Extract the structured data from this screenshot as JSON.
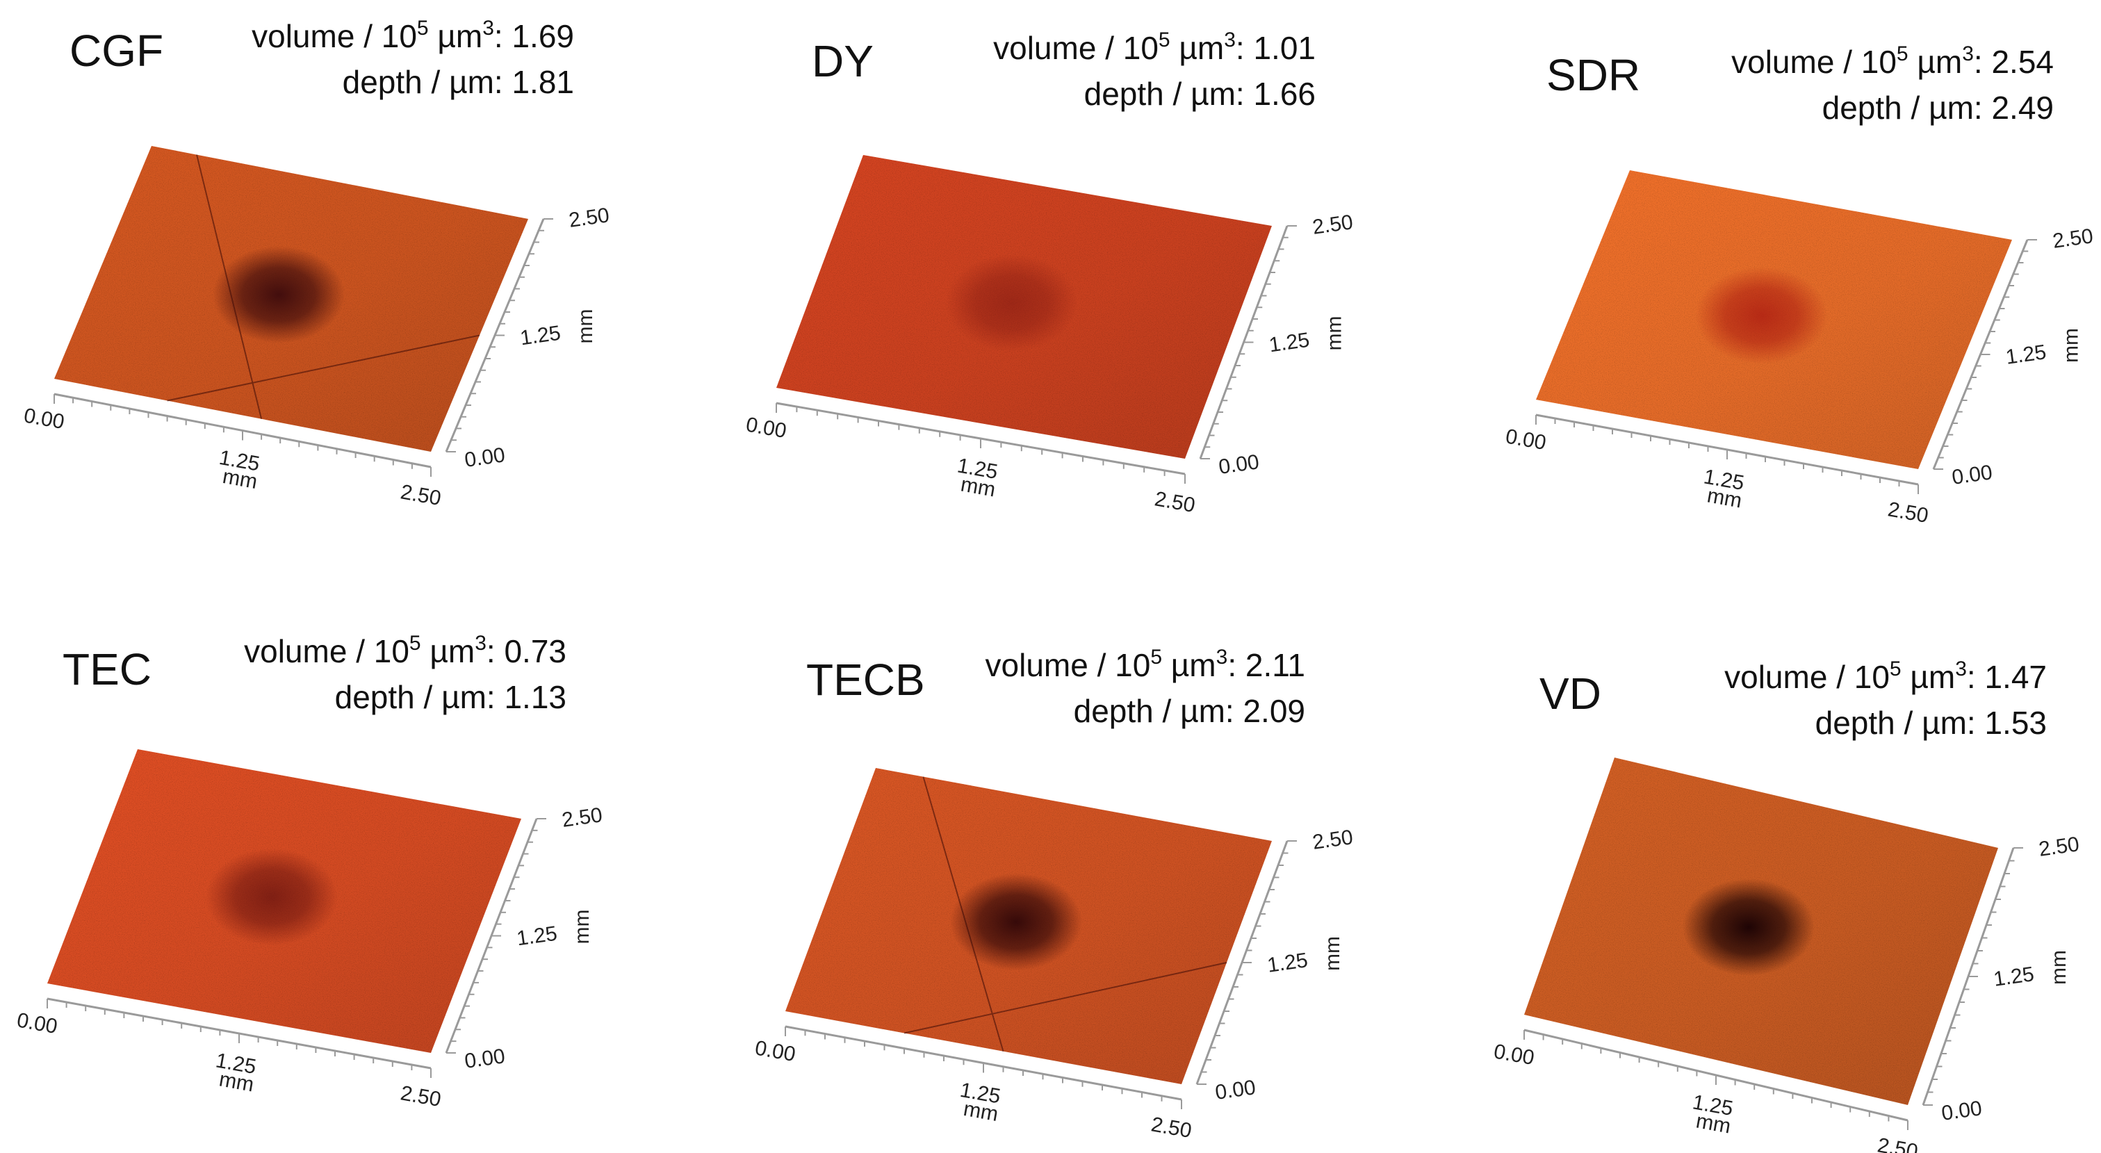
{
  "figure": {
    "units": {
      "volume_label": "volume / 10",
      "volume_exp": "5",
      "volume_unit": " µm",
      "volume_unit_exp": "3",
      "depth_label": "depth / µm:",
      "axis_unit": "mm"
    },
    "ticks": [
      "0.00",
      "1.25",
      "2.50"
    ],
    "panels": [
      {
        "id": "cgf",
        "label": "CGF",
        "volume": "1.69",
        "depth": "1.81",
        "surface_color": "#c9531f",
        "dark_color": "#3b0a0c",
        "pit_strength": 0.95,
        "scratches": true
      },
      {
        "id": "dy",
        "label": "DY",
        "volume": "1.01",
        "depth": "1.66",
        "surface_color": "#c8401f",
        "dark_color": "#7a1410",
        "pit_strength": 0.55,
        "scratches": false
      },
      {
        "id": "sdr",
        "label": "SDR",
        "volume": "2.54",
        "depth": "2.49",
        "surface_color": "#e26a28",
        "dark_color": "#a8150f",
        "pit_strength": 0.75,
        "scratches": false
      },
      {
        "id": "tec",
        "label": "TEC",
        "volume": "0.73",
        "depth": "1.13",
        "surface_color": "#d24a22",
        "dark_color": "#5d0d0d",
        "pit_strength": 0.7,
        "scratches": false
      },
      {
        "id": "tecb",
        "label": "TECB",
        "volume": "2.11",
        "depth": "2.09",
        "surface_color": "#cc5122",
        "dark_color": "#2e0608",
        "pit_strength": 0.95,
        "scratches": true
      },
      {
        "id": "vd",
        "label": "VD",
        "volume": "1.47",
        "depth": "1.53",
        "surface_color": "#c65a22",
        "dark_color": "#1e0405",
        "pit_strength": 1.0,
        "scratches": false
      }
    ]
  }
}
